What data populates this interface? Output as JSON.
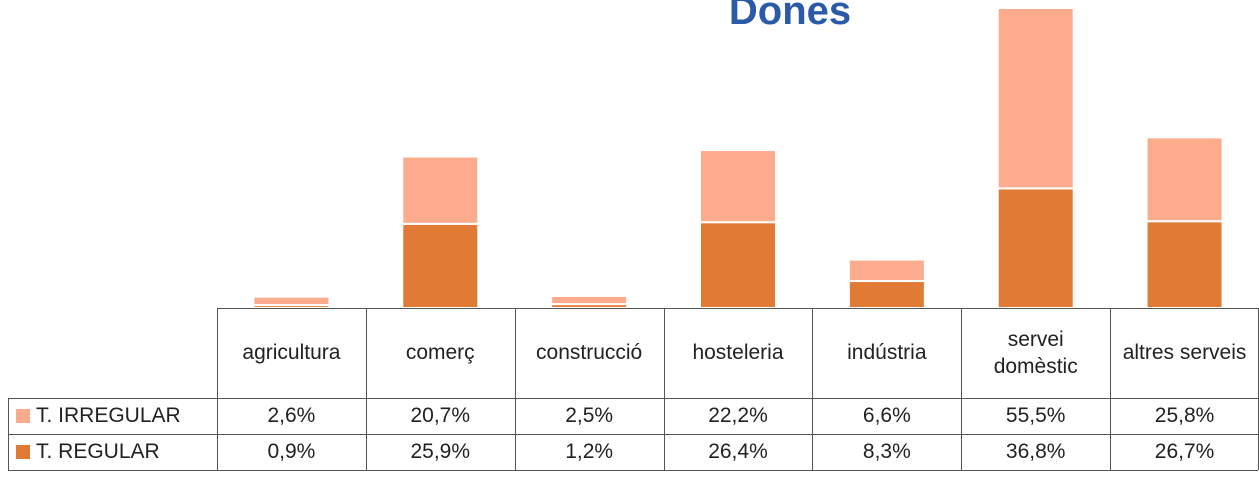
{
  "chart_data": {
    "type": "stacked_bar",
    "title": "Dones",
    "categories": [
      "agricultura",
      "comerç",
      "construcció",
      "hosteleria",
      "indústria",
      "servei domèstic",
      "altres serveis"
    ],
    "series": [
      {
        "name": "T. IRREGULAR",
        "color": "#fcab8c",
        "values": [
          2.6,
          20.7,
          2.5,
          22.2,
          6.6,
          55.5,
          25.8
        ],
        "value_labels": [
          "2,6%",
          "20,7%",
          "2,5%",
          "22,2%",
          "6,6%",
          "55,5%",
          "25,8%"
        ]
      },
      {
        "name": "T. REGULAR",
        "color": "#e07a35",
        "values": [
          0.9,
          25.9,
          1.2,
          26.4,
          8.3,
          36.8,
          26.7
        ],
        "value_labels": [
          "0,9%",
          "25,9%",
          "1,2%",
          "26,4%",
          "8,3%",
          "36,8%",
          "26,7%"
        ]
      }
    ]
  }
}
